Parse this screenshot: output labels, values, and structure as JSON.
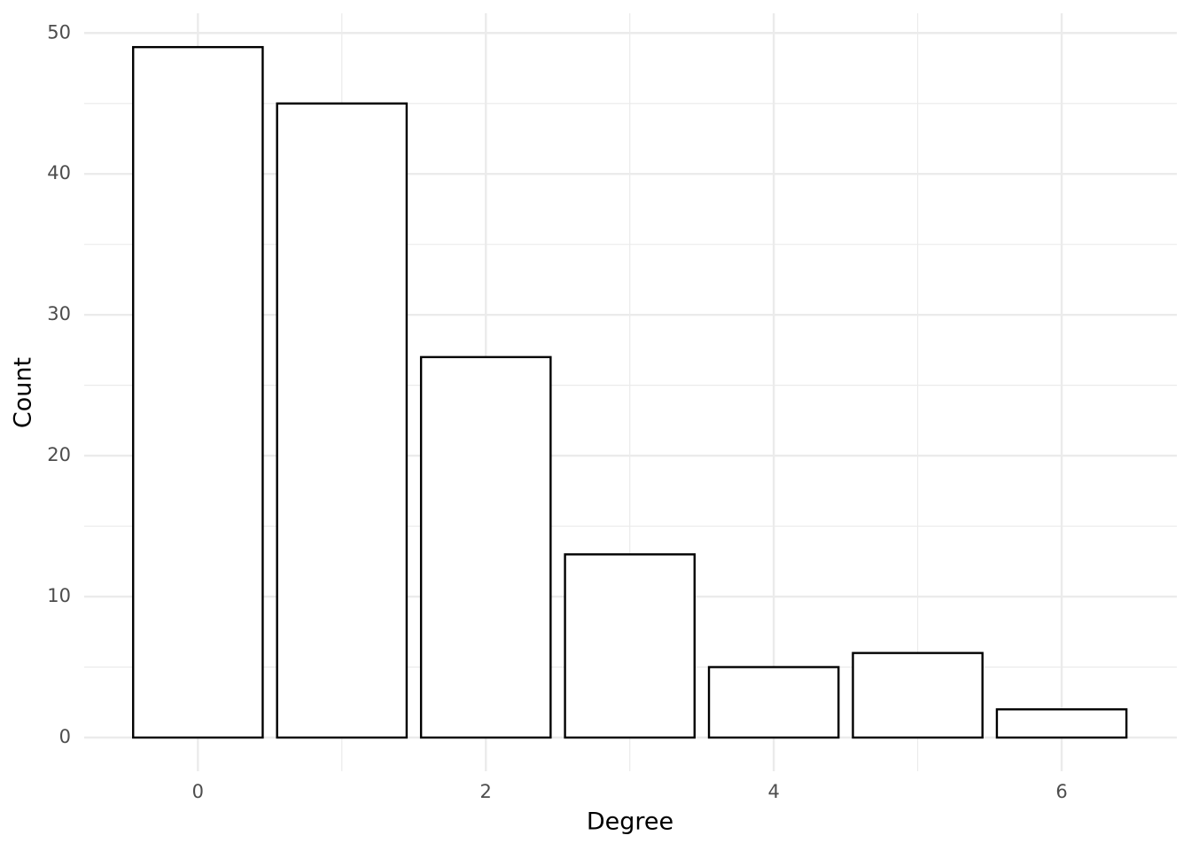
{
  "chart_data": {
    "type": "bar",
    "x": [
      0,
      1,
      2,
      3,
      4,
      5,
      6
    ],
    "values": [
      49,
      45,
      27,
      13,
      5,
      6,
      2
    ],
    "xlabel": "Degree",
    "ylabel": "Count",
    "xlim": [
      -0.79,
      6.8
    ],
    "ylim": [
      -2.39,
      51.4
    ],
    "xticks": [
      0,
      2,
      4,
      6
    ],
    "yticks": [
      0,
      10,
      20,
      30,
      40,
      50
    ],
    "color": "#ffffff",
    "edgecolor": "#000000",
    "grid": true
  }
}
